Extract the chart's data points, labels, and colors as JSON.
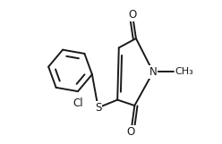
{
  "bg_color": "#ffffff",
  "line_color": "#1a1a1a",
  "line_width": 1.4,
  "font_size": 8.5,
  "figsize": [
    2.48,
    1.61
  ],
  "dpi": 100,
  "xlim": [
    0,
    1
  ],
  "ylim": [
    0,
    1
  ]
}
